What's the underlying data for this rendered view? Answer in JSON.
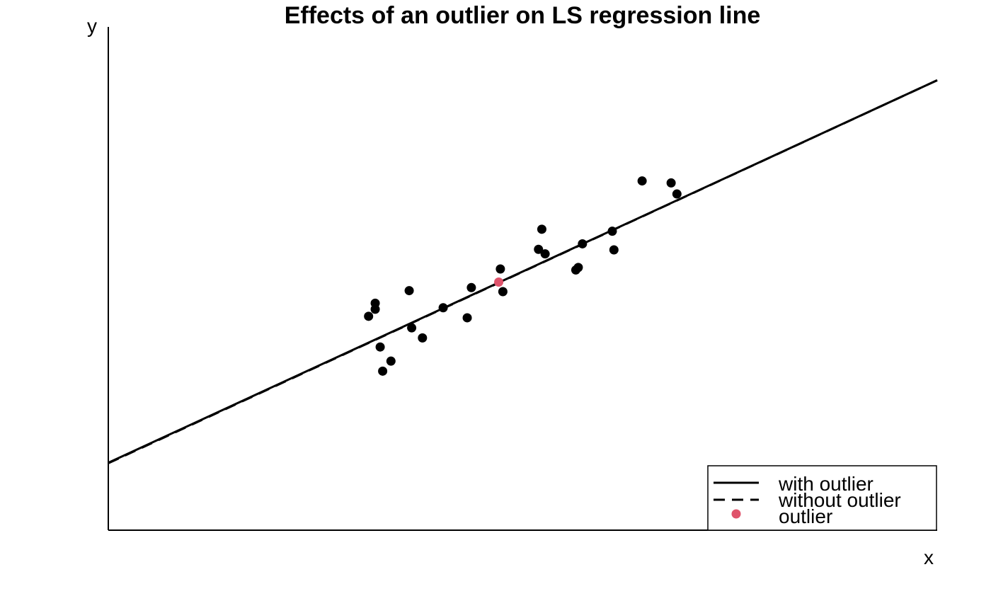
{
  "chart_data": {
    "type": "scatter",
    "title": "Effects of an outlier on LS regression line",
    "xlabel": "x",
    "ylabel": "y",
    "xlim": [
      0,
      100
    ],
    "ylim": [
      0,
      100
    ],
    "grid": false,
    "legend_position": "bottom-right",
    "series": [
      {
        "kind": "points",
        "color": "#000000",
        "points": [
          {
            "x": 31.4,
            "y": 42.5
          },
          {
            "x": 32.2,
            "y": 43.9
          },
          {
            "x": 32.2,
            "y": 45.1
          },
          {
            "x": 32.8,
            "y": 36.4
          },
          {
            "x": 33.1,
            "y": 31.6
          },
          {
            "x": 34.1,
            "y": 33.6
          },
          {
            "x": 36.3,
            "y": 47.6
          },
          {
            "x": 36.6,
            "y": 40.2
          },
          {
            "x": 37.9,
            "y": 38.2
          },
          {
            "x": 40.4,
            "y": 44.2
          },
          {
            "x": 43.3,
            "y": 42.2
          },
          {
            "x": 43.8,
            "y": 48.2
          },
          {
            "x": 47.3,
            "y": 51.9
          },
          {
            "x": 47.6,
            "y": 47.4
          },
          {
            "x": 51.9,
            "y": 55.8
          },
          {
            "x": 52.3,
            "y": 59.8
          },
          {
            "x": 52.7,
            "y": 54.9
          },
          {
            "x": 56.4,
            "y": 51.7
          },
          {
            "x": 56.7,
            "y": 52.2
          },
          {
            "x": 57.2,
            "y": 56.9
          },
          {
            "x": 60.8,
            "y": 59.4
          },
          {
            "x": 61.0,
            "y": 55.7
          },
          {
            "x": 64.4,
            "y": 69.4
          },
          {
            "x": 67.9,
            "y": 69.0
          },
          {
            "x": 68.6,
            "y": 66.8
          }
        ]
      },
      {
        "kind": "points",
        "name": "outlier",
        "color": "#DF536B",
        "points": [
          {
            "x": 47.1,
            "y": 49.3
          }
        ]
      },
      {
        "kind": "line",
        "name": "with outlier",
        "color": "#000000",
        "dash": "solid",
        "intercept": 13.4,
        "slope": 0.76
      },
      {
        "kind": "line",
        "name": "without outlier",
        "color": "#000000",
        "dash": "dashed",
        "intercept": 13.3,
        "slope": 0.761
      }
    ],
    "legend": [
      {
        "label": "with outlier",
        "symbol": "solid-line"
      },
      {
        "label": "without outlier",
        "symbol": "dashed-line"
      },
      {
        "label": "outlier",
        "symbol": "dot"
      }
    ]
  }
}
